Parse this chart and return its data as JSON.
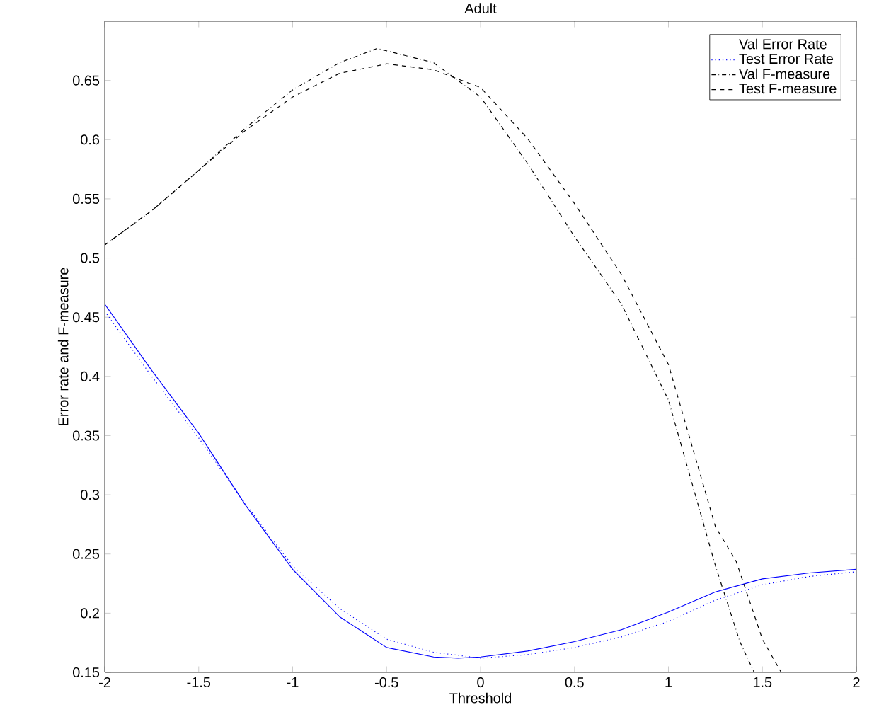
{
  "chart_data": {
    "type": "line",
    "title": "Adult",
    "xlabel": "Threshold",
    "ylabel": "Error rate and F-measure",
    "xlim": [
      -2,
      2
    ],
    "ylim": [
      0.15,
      0.7
    ],
    "xticks": [
      -2,
      -1.5,
      -1,
      -0.5,
      0,
      0.5,
      1,
      1.5,
      2
    ],
    "yticks": [
      0.15,
      0.2,
      0.25,
      0.3,
      0.35,
      0.4,
      0.45,
      0.5,
      0.55,
      0.6,
      0.65
    ],
    "legend": "top right",
    "grid": false,
    "marker": "none",
    "series": [
      {
        "name": "Val Error Rate",
        "color": "#0000ff",
        "line_style": "solid",
        "x": [
          -2,
          -1.75,
          -1.5,
          -1.25,
          -1,
          -0.75,
          -0.5,
          -0.25,
          -0.12,
          0,
          0.25,
          0.5,
          0.75,
          1,
          1.25,
          1.5,
          1.75,
          2
        ],
        "values": [
          0.461,
          0.405,
          0.352,
          0.291,
          0.237,
          0.197,
          0.171,
          0.163,
          0.162,
          0.163,
          0.168,
          0.176,
          0.186,
          0.201,
          0.218,
          0.229,
          0.234,
          0.237
        ]
      },
      {
        "name": "Test Error Rate",
        "color": "#0000ff",
        "line_style": "dotted",
        "x": [
          -2,
          -1.75,
          -1.5,
          -1.25,
          -1,
          -0.75,
          -0.5,
          -0.25,
          0,
          0.25,
          0.5,
          0.75,
          1,
          1.25,
          1.5,
          1.75,
          2
        ],
        "values": [
          0.455,
          0.4,
          0.348,
          0.292,
          0.24,
          0.204,
          0.178,
          0.167,
          0.162,
          0.165,
          0.171,
          0.18,
          0.193,
          0.211,
          0.224,
          0.231,
          0.235
        ]
      },
      {
        "name": "Val F-measure",
        "color": "#000000",
        "line_style": "dashdot",
        "x": [
          -2,
          -1.75,
          -1.5,
          -1.25,
          -1,
          -0.75,
          -0.55,
          -0.25,
          0,
          0.25,
          0.5,
          0.75,
          1,
          1.25,
          1.38,
          1.456
        ],
        "values": [
          0.511,
          0.54,
          0.574,
          0.61,
          0.642,
          0.665,
          0.677,
          0.665,
          0.636,
          0.58,
          0.518,
          0.461,
          0.38,
          0.24,
          0.176,
          0.15
        ]
      },
      {
        "name": "Test F-measure",
        "color": "#000000",
        "line_style": "dashed",
        "x": [
          -2,
          -1.75,
          -1.5,
          -1.25,
          -1,
          -0.75,
          -0.5,
          -0.25,
          0,
          0.25,
          0.5,
          0.75,
          1,
          1.25,
          1.36,
          1.5,
          1.6
        ],
        "values": [
          0.511,
          0.54,
          0.574,
          0.608,
          0.636,
          0.656,
          0.664,
          0.659,
          0.644,
          0.601,
          0.546,
          0.486,
          0.41,
          0.273,
          0.244,
          0.178,
          0.15
        ]
      }
    ]
  }
}
